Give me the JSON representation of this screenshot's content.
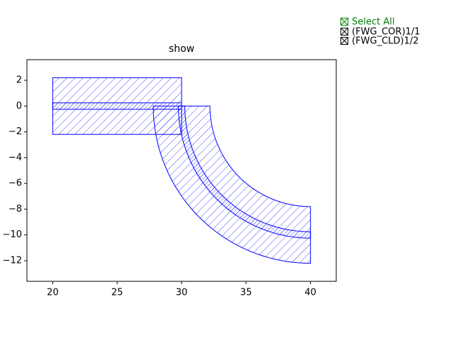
{
  "chart_data": {
    "type": "layout",
    "title": "show",
    "xlim": [
      18,
      42
    ],
    "ylim": [
      -13.6,
      3.6
    ],
    "xticks": [
      20,
      25,
      30,
      35,
      40
    ],
    "yticks": [
      2,
      0,
      {
        "value": -2,
        "label": "−2"
      },
      {
        "value": -4,
        "label": "−4"
      },
      {
        "value": -6,
        "label": "−6"
      },
      {
        "value": -8,
        "label": "−8"
      },
      {
        "value": -10,
        "label": "−10"
      },
      {
        "value": -12,
        "label": "−12"
      }
    ],
    "select_all": "Select All",
    "select_all_color": "#008000",
    "series": [
      {
        "name": "(FWG_COR)1/1",
        "color": "#0000ff",
        "hatch": "dense",
        "rects": [
          {
            "x": [
              20,
              30
            ],
            "y": [
              -0.25,
              0.25
            ]
          }
        ],
        "sectors": [
          {
            "center": [
              40,
              0
            ],
            "radii": [
              9.75,
              10.25
            ],
            "angles": [
              180,
              270
            ]
          }
        ]
      },
      {
        "name": "(FWG_CLD)1/2",
        "color": "#0000ff",
        "hatch": "sparse",
        "rects": [
          {
            "x": [
              20,
              30
            ],
            "y": [
              -2.2,
              2.2
            ]
          }
        ],
        "sectors": [
          {
            "center": [
              40,
              0
            ],
            "radii": [
              7.8,
              12.2
            ],
            "angles": [
              180,
              270
            ]
          }
        ]
      }
    ]
  }
}
